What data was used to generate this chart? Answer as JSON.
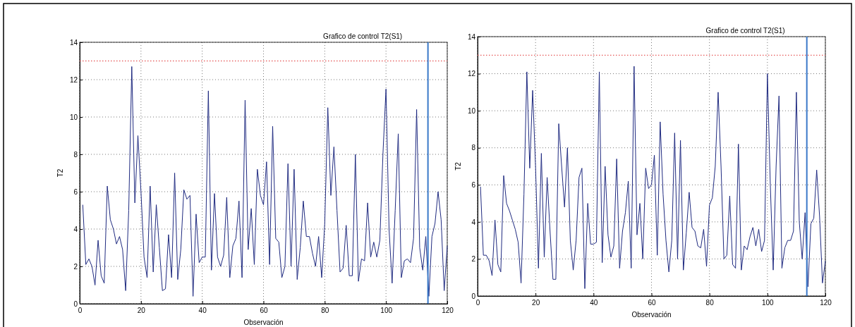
{
  "chart_data": [
    {
      "type": "line",
      "title": "Grafico de control T2(S1)",
      "xlabel": "Observación",
      "ylabel": "T2",
      "x": [
        1,
        2,
        3,
        4,
        5,
        6,
        7,
        8,
        9,
        10,
        11,
        12,
        13,
        14,
        15,
        16,
        17,
        18,
        19,
        20,
        21,
        22,
        23,
        24,
        25,
        26,
        27,
        28,
        29,
        30,
        31,
        32,
        33,
        34,
        35,
        36,
        37,
        38,
        39,
        40,
        41,
        42,
        43,
        44,
        45,
        46,
        47,
        48,
        49,
        50,
        51,
        52,
        53,
        54,
        55,
        56,
        57,
        58,
        59,
        60,
        61,
        62,
        63,
        64,
        65,
        66,
        67,
        68,
        69,
        70,
        71,
        72,
        73,
        74,
        75,
        76,
        77,
        78,
        79,
        80,
        81,
        82,
        83,
        84,
        85,
        86,
        87,
        88,
        89,
        90,
        91,
        92,
        93,
        94,
        95,
        96,
        97,
        98,
        99,
        100,
        101,
        102,
        103,
        104,
        105,
        106,
        107,
        108,
        109,
        110,
        111,
        112,
        113,
        114,
        115,
        116,
        117,
        118,
        119,
        120
      ],
      "series": [
        {
          "color": "#1f2a80",
          "values": [
            5.3,
            2.1,
            2.4,
            2.0,
            1.0,
            3.4,
            1.5,
            1.1,
            6.3,
            4.5,
            4.0,
            3.2,
            3.6,
            2.9,
            0.7,
            5.0,
            12.7,
            5.4,
            9.0,
            6.0,
            2.5,
            1.4,
            6.3,
            1.7,
            5.3,
            3.0,
            0.7,
            0.8,
            3.7,
            1.4,
            7.0,
            1.3,
            2.9,
            6.1,
            5.6,
            5.8,
            0.4,
            4.8,
            2.2,
            2.5,
            2.5,
            11.4,
            1.8,
            5.9,
            2.5,
            2.0,
            2.6,
            5.7,
            1.4,
            3.1,
            3.5,
            5.5,
            1.4,
            10.9,
            2.9,
            5.1,
            2.1,
            7.2,
            5.8,
            5.3,
            7.6,
            2.1,
            9.5,
            3.5,
            3.3,
            1.4,
            2.0,
            7.5,
            2.0,
            7.2,
            1.3,
            3.0,
            5.5,
            3.6,
            3.6,
            2.7,
            2.0,
            3.6,
            1.4,
            4.3,
            10.5,
            5.8,
            8.4,
            5.0,
            1.7,
            1.9,
            4.2,
            1.5,
            1.5,
            8.0,
            1.2,
            2.4,
            2.3,
            5.4,
            2.5,
            3.3,
            2.5,
            3.4,
            8.0,
            11.5,
            4.0,
            1.1,
            5.0,
            9.1,
            1.4,
            2.3,
            2.4,
            2.2,
            3.5,
            10.4,
            3.0,
            1.8,
            3.6,
            0.4,
            3.6,
            4.3,
            6.0,
            4.5,
            0.7,
            3.1
          ]
        }
      ],
      "xlim": [
        0,
        120
      ],
      "xticks": [
        0,
        20,
        40,
        60,
        80,
        100,
        120
      ],
      "ylim": [
        0,
        14
      ],
      "yticks": [
        0,
        2,
        4,
        6,
        8,
        10,
        12,
        14
      ],
      "grid": true,
      "line_style": "solid",
      "ref_lines": [
        {
          "axis": "y",
          "value": 13,
          "color": "#e03030",
          "line_style": "dotted"
        },
        {
          "axis": "x",
          "value": 113.7,
          "color": "#3a78c8",
          "line_style": "solid"
        }
      ]
    },
    {
      "type": "line",
      "title": "Grafico de control T2(S1)",
      "xlabel": "Observación",
      "ylabel": "T2",
      "x": [
        1,
        2,
        3,
        4,
        5,
        6,
        7,
        8,
        9,
        10,
        11,
        12,
        13,
        14,
        15,
        16,
        17,
        18,
        19,
        20,
        21,
        22,
        23,
        24,
        25,
        26,
        27,
        28,
        29,
        30,
        31,
        32,
        33,
        34,
        35,
        36,
        37,
        38,
        39,
        40,
        41,
        42,
        43,
        44,
        45,
        46,
        47,
        48,
        49,
        50,
        51,
        52,
        53,
        54,
        55,
        56,
        57,
        58,
        59,
        60,
        61,
        62,
        63,
        64,
        65,
        66,
        67,
        68,
        69,
        70,
        71,
        72,
        73,
        74,
        75,
        76,
        77,
        78,
        79,
        80,
        81,
        82,
        83,
        84,
        85,
        86,
        87,
        88,
        89,
        90,
        91,
        92,
        93,
        94,
        95,
        96,
        97,
        98,
        99,
        100,
        101,
        102,
        103,
        104,
        105,
        106,
        107,
        108,
        109,
        110,
        111,
        112,
        113,
        114,
        115,
        116,
        117,
        118,
        119,
        120
      ],
      "series": [
        {
          "color": "#1f2a80",
          "values": [
            5.9,
            2.2,
            2.2,
            1.9,
            1.1,
            4.1,
            1.7,
            1.3,
            6.5,
            5.0,
            4.6,
            4.1,
            3.6,
            2.9,
            0.7,
            5.5,
            12.1,
            6.9,
            11.1,
            7.0,
            1.5,
            7.7,
            2.1,
            6.4,
            3.5,
            0.9,
            0.9,
            9.3,
            7.0,
            4.8,
            8.0,
            3.0,
            1.4,
            3.0,
            6.4,
            6.9,
            0.4,
            5.0,
            2.8,
            2.8,
            2.9,
            12.1,
            1.8,
            7.0,
            3.3,
            2.1,
            2.7,
            7.4,
            1.5,
            3.5,
            4.5,
            6.2,
            1.5,
            12.4,
            3.3,
            5.0,
            2.0,
            6.9,
            5.8,
            6.0,
            7.6,
            2.2,
            9.4,
            5.5,
            3.0,
            1.3,
            3.0,
            8.8,
            2.0,
            8.4,
            1.4,
            3.4,
            5.6,
            3.7,
            3.5,
            2.7,
            2.6,
            3.6,
            1.6,
            4.9,
            5.3,
            7.0,
            11.0,
            7.0,
            2.0,
            2.2,
            5.4,
            1.7,
            1.5,
            8.2,
            1.4,
            2.7,
            2.5,
            3.2,
            3.7,
            2.7,
            3.6,
            2.4,
            3.0,
            12.0,
            6.0,
            1.4,
            7.0,
            10.8,
            1.5,
            2.6,
            3.0,
            3.0,
            3.5,
            11.0,
            4.0,
            2.0,
            4.5,
            0.5,
            3.9,
            4.2,
            6.8,
            4.3,
            0.7,
            1.9
          ]
        }
      ],
      "xlim": [
        0,
        120
      ],
      "xticks": [
        0,
        20,
        40,
        60,
        80,
        100,
        120
      ],
      "ylim": [
        0,
        14
      ],
      "yticks": [
        0,
        2,
        4,
        6,
        8,
        10,
        12,
        14
      ],
      "grid": true,
      "line_style": "solid",
      "ref_lines": [
        {
          "axis": "y",
          "value": 13,
          "color": "#e03030",
          "line_style": "dotted"
        },
        {
          "axis": "x",
          "value": 113.6,
          "color": "#3a78c8",
          "line_style": "solid"
        }
      ]
    }
  ]
}
